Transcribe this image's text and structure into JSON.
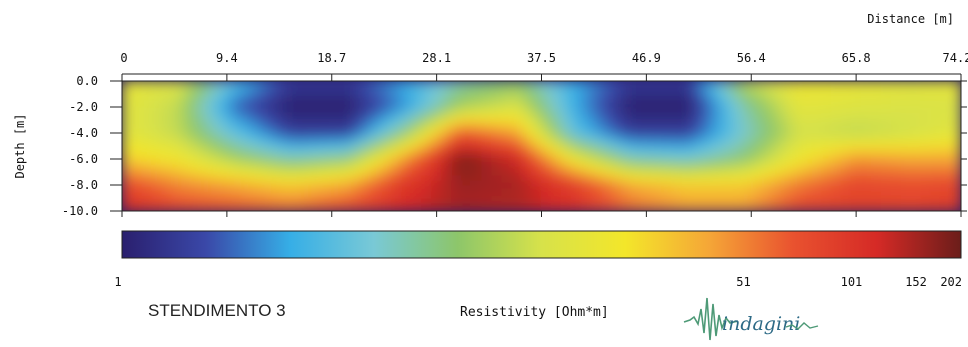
{
  "chart_data": {
    "type": "heatmap",
    "title": "STENDIMENTO 3",
    "xlabel": "Distance [m]",
    "ylabel": "Depth [m]",
    "x_ticks": [
      "0",
      "9.4",
      "18.7",
      "28.1",
      "37.5",
      "46.9",
      "56.4",
      "65.8",
      "74.2"
    ],
    "y_ticks": [
      "0.0",
      "-2.0",
      "-4.0",
      "-6.0",
      "-8.0",
      "-10.0"
    ],
    "xlim": [
      0,
      74.2
    ],
    "ylim": [
      -10.0,
      0.0
    ],
    "colorbar": {
      "label": "Resistivity [Ohm*m]",
      "scale": "log",
      "range": [
        1,
        202
      ],
      "tick_labels": [
        "1",
        "51",
        "101",
        "152",
        "202"
      ],
      "tick_values": [
        1,
        51,
        101,
        152,
        202
      ],
      "colors": [
        "#2a1f6e",
        "#3a48a8",
        "#36aee6",
        "#79c9d6",
        "#8dc66a",
        "#d7e24a",
        "#f3e62a",
        "#f5a637",
        "#e9522f",
        "#d52a26",
        "#6b1d1a"
      ]
    },
    "resistivity_grid": {
      "x": [
        0,
        5,
        10,
        15,
        20,
        25,
        30,
        35,
        40,
        45,
        50,
        55,
        60,
        65,
        70,
        74.2
      ],
      "depth": [
        0,
        -2,
        -4,
        -6,
        -8,
        -10
      ],
      "values": [
        [
          20,
          16,
          4,
          1.5,
          1.5,
          3,
          6,
          8,
          3,
          1.5,
          1.5,
          12,
          22,
          20,
          18,
          20
        ],
        [
          18,
          12,
          2,
          1,
          1,
          2.5,
          10,
          15,
          3,
          1,
          1,
          6,
          18,
          16,
          15,
          15
        ],
        [
          18,
          12,
          4,
          1.5,
          1.5,
          8,
          70,
          40,
          4,
          1.5,
          1.5,
          5,
          14,
          12,
          14,
          18
        ],
        [
          30,
          22,
          10,
          6,
          8,
          45,
          190,
          120,
          20,
          6,
          5,
          8,
          22,
          45,
          40,
          40
        ],
        [
          80,
          50,
          40,
          30,
          40,
          100,
          160,
          150,
          90,
          40,
          30,
          30,
          55,
          80,
          75,
          80
        ],
        [
          120,
          80,
          70,
          60,
          80,
          120,
          150,
          140,
          110,
          60,
          45,
          45,
          80,
          90,
          85,
          100
        ]
      ]
    }
  },
  "logo": {
    "text": "indagini"
  }
}
